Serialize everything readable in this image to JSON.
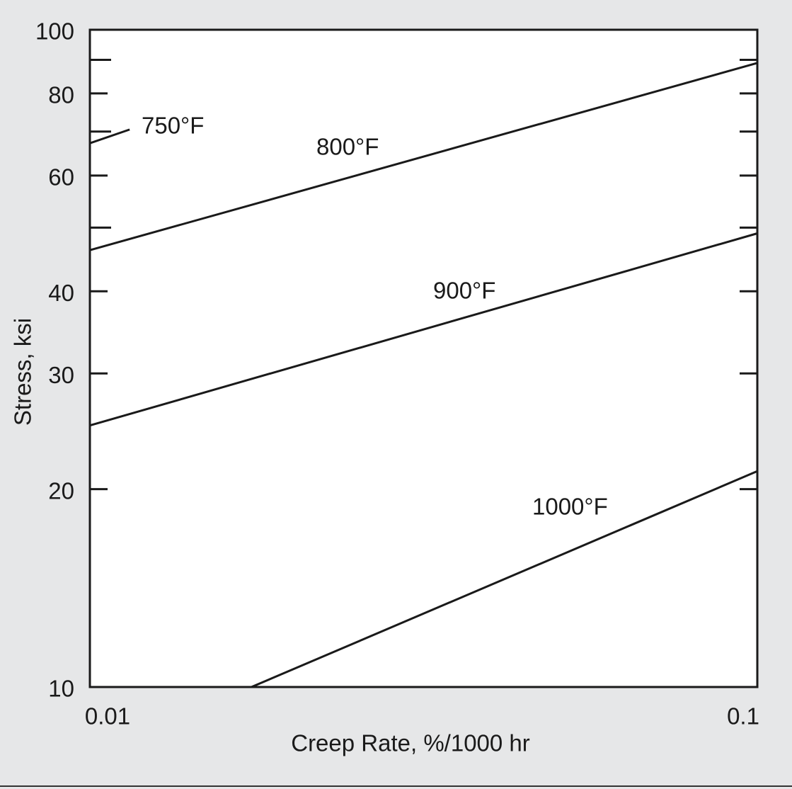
{
  "chart_data": {
    "type": "line",
    "x_label": "Creep Rate, %/1000 hr",
    "y_label": "Stress, ksi",
    "xscale": "log",
    "yscale": "log",
    "xlim": [
      0.01,
      0.1
    ],
    "ylim": [
      10,
      100
    ],
    "xticks": [
      0.01,
      0.1
    ],
    "yticks": [
      10,
      20,
      30,
      40,
      60,
      80,
      100
    ],
    "yminorticks": [
      50,
      70,
      90
    ],
    "color": "#1a1a1a",
    "series": [
      {
        "name": "750°F",
        "x": [
          0.01,
          0.01147
        ],
        "values": [
          67.2,
          70.5
        ]
      },
      {
        "name": "800°F",
        "x": [
          0.01,
          0.1
        ],
        "values": [
          46.2,
          89
        ]
      },
      {
        "name": "900°F",
        "x": [
          0.01,
          0.1
        ],
        "values": [
          25,
          49
        ]
      },
      {
        "name": "1000°F",
        "x": [
          0.01746,
          0.1
        ],
        "values": [
          10,
          21.3
        ]
      }
    ]
  }
}
